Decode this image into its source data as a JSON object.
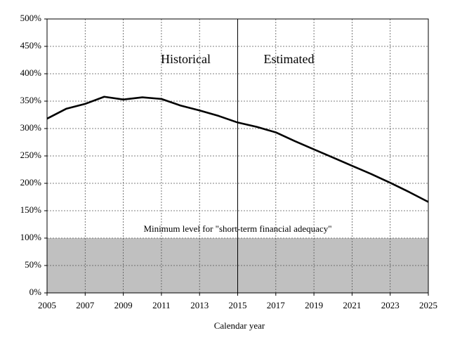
{
  "chart_data": {
    "type": "line",
    "x": [
      2005,
      2006,
      2007,
      2008,
      2009,
      2010,
      2011,
      2012,
      2013,
      2014,
      2015,
      2016,
      2017,
      2018,
      2019,
      2020,
      2021,
      2022,
      2023,
      2024,
      2025
    ],
    "values": [
      318,
      336,
      345,
      358,
      353,
      357,
      354,
      342,
      333,
      323,
      311,
      303,
      293,
      277,
      262,
      247,
      232,
      217,
      201,
      184,
      166
    ],
    "color": "#000000",
    "xlabel": "Calendar year",
    "xlim": [
      2005,
      2025
    ],
    "xticks": [
      2005,
      2007,
      2009,
      2011,
      2013,
      2015,
      2017,
      2019,
      2021,
      2023,
      2025
    ],
    "ylim": [
      0,
      500
    ],
    "yticks": [
      {
        "value": 0,
        "label": "0%"
      },
      {
        "value": 50,
        "label": "50%"
      },
      {
        "value": 100,
        "label": "100%"
      },
      {
        "value": 150,
        "label": "150%"
      },
      {
        "value": 200,
        "label": "200%"
      },
      {
        "value": 250,
        "label": "250%"
      },
      {
        "value": 300,
        "label": "300%"
      },
      {
        "value": 350,
        "label": "350%"
      },
      {
        "value": 400,
        "label": "400%"
      },
      {
        "value": 450,
        "label": "450%"
      },
      {
        "value": 500,
        "label": "500%"
      }
    ],
    "grid": true,
    "threshold": {
      "value": 100,
      "label": "Minimum level for \"short-term financial adequacy\"",
      "color": "#c0c0c0"
    },
    "divider": {
      "x": 2015,
      "left_label": "Historical",
      "right_label": "Estimated"
    }
  }
}
